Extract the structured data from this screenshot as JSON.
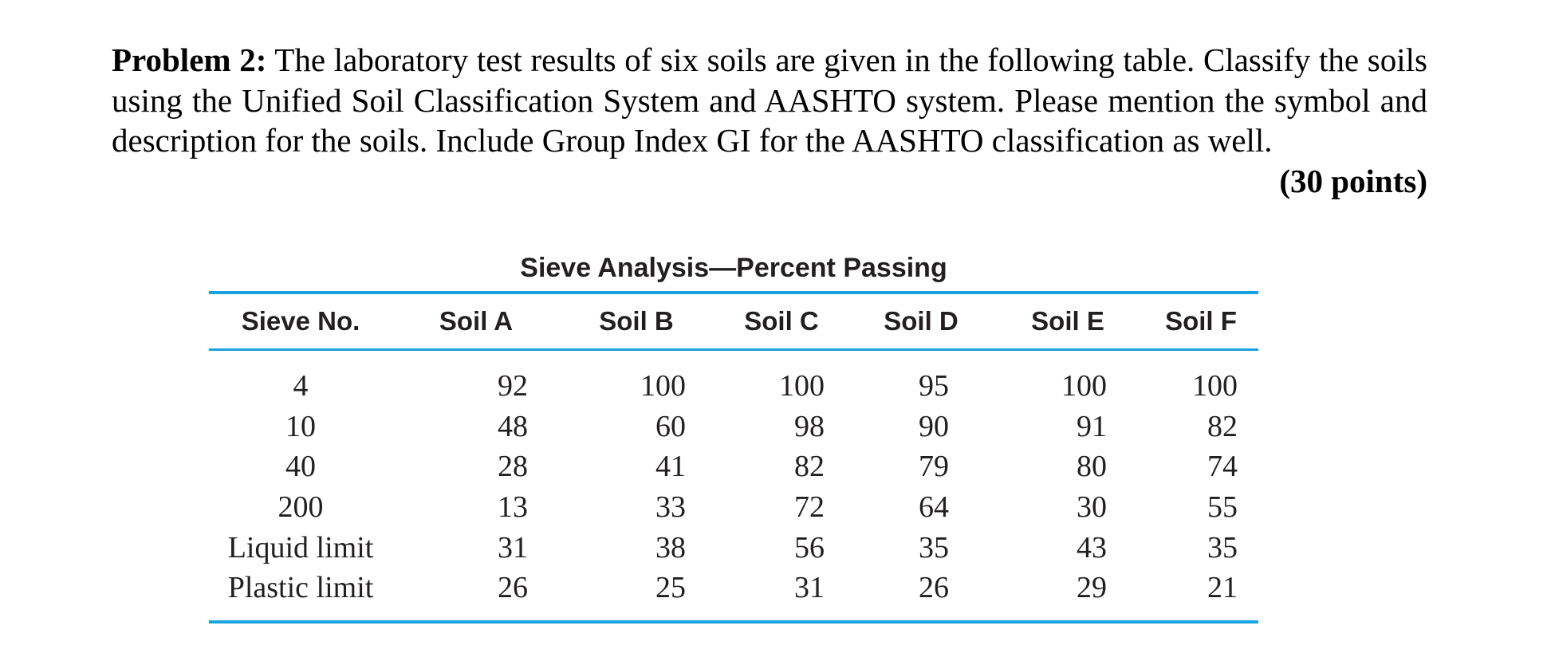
{
  "problem": {
    "label": "Problem 2:",
    "text": " The laboratory test results of six soils are given in the following table. Classify the soils using the Unified Soil Classification System and AASHTO system. Please mention the symbol and description for the soils. Include Group Index GI for the AASHTO classification as well.",
    "points": "(30 points)"
  },
  "table": {
    "title": "Sieve Analysis—Percent Passing",
    "headers": [
      "Sieve No.",
      "Soil A",
      "Soil B",
      "Soil C",
      "Soil D",
      "Soil E",
      "Soil F"
    ],
    "rows": [
      [
        "4",
        "92",
        "100",
        "100",
        "95",
        "100",
        "100"
      ],
      [
        "10",
        "48",
        "60",
        "98",
        "90",
        "91",
        "82"
      ],
      [
        "40",
        "28",
        "41",
        "82",
        "79",
        "80",
        "74"
      ],
      [
        "200",
        "13",
        "33",
        "72",
        "64",
        "30",
        "55"
      ],
      [
        "Liquid limit",
        "31",
        "38",
        "56",
        "35",
        "43",
        "35"
      ],
      [
        "Plastic limit",
        "26",
        "25",
        "31",
        "26",
        "29",
        "21"
      ]
    ]
  }
}
